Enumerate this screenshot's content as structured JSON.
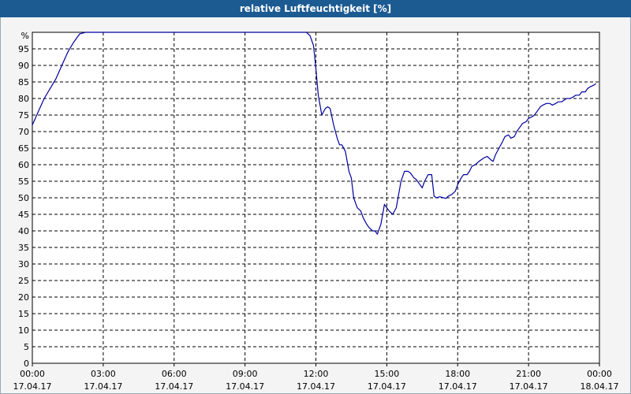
{
  "window": {
    "title": "relative Luftfeuchtigkeit [%]"
  },
  "chart_data": {
    "type": "line",
    "title": "relative Luftfeuchtigkeit [%]",
    "ylabel": "%",
    "ylim": [
      0,
      100
    ],
    "yticks": [
      0,
      5,
      10,
      15,
      20,
      25,
      30,
      35,
      40,
      45,
      50,
      55,
      60,
      65,
      70,
      75,
      80,
      85,
      90,
      95
    ],
    "xlim": [
      0,
      24
    ],
    "xticks": [
      {
        "time": "00:00",
        "date": "17.04.17"
      },
      {
        "time": "03:00",
        "date": "17.04.17"
      },
      {
        "time": "06:00",
        "date": "17.04.17"
      },
      {
        "time": "09:00",
        "date": "17.04.17"
      },
      {
        "time": "12:00",
        "date": "17.04.17"
      },
      {
        "time": "15:00",
        "date": "17.04.17"
      },
      {
        "time": "18:00",
        "date": "17.04.17"
      },
      {
        "time": "21:00",
        "date": "17.04.17"
      },
      {
        "time": "00:00",
        "date": "18.04.17"
      }
    ],
    "grid": true,
    "series": [
      {
        "color": "#0000a0",
        "x": [
          0.0,
          0.25,
          0.5,
          0.75,
          1.0,
          1.25,
          1.5,
          1.75,
          2.0,
          2.25,
          2.5,
          2.75,
          3.0,
          11.25,
          11.5,
          11.6,
          11.75,
          11.9,
          12.0,
          12.1,
          12.25,
          12.4,
          12.5,
          12.6,
          12.75,
          12.9,
          13.0,
          13.1,
          13.25,
          13.4,
          13.5,
          13.6,
          13.75,
          13.9,
          14.0,
          14.15,
          14.25,
          14.4,
          14.5,
          14.6,
          14.75,
          14.9,
          15.0,
          15.1,
          15.25,
          15.4,
          15.5,
          15.6,
          15.75,
          15.9,
          16.0,
          16.15,
          16.25,
          16.4,
          16.5,
          16.6,
          16.75,
          16.9,
          17.0,
          17.1,
          17.25,
          17.4,
          17.5,
          17.6,
          17.75,
          17.9,
          18.0,
          18.15,
          18.25,
          18.4,
          18.5,
          18.6,
          18.75,
          18.9,
          19.0,
          19.1,
          19.25,
          19.4,
          19.5,
          19.6,
          19.75,
          19.9,
          20.0,
          20.15,
          20.25,
          20.4,
          20.5,
          20.6,
          20.75,
          20.9,
          21.0,
          21.15,
          21.25,
          21.4,
          21.5,
          21.6,
          21.75,
          21.9,
          22.0,
          22.15,
          22.25,
          22.4,
          22.5,
          22.6,
          22.75,
          22.9,
          23.0,
          23.15,
          23.25,
          23.4,
          23.5,
          23.6,
          23.75,
          23.85
        ],
        "y": [
          72,
          76,
          80,
          83,
          86,
          90,
          94,
          97,
          99.5,
          100,
          100,
          100,
          100,
          100,
          100,
          100,
          99,
          96,
          89,
          81,
          75,
          77,
          77.5,
          77,
          72,
          68,
          66,
          66,
          64,
          58,
          56,
          50,
          47,
          46,
          44,
          42,
          41,
          40,
          40,
          39,
          42,
          48,
          47,
          46,
          45,
          47,
          51,
          55,
          58,
          58,
          57.5,
          56,
          55.5,
          54,
          53,
          55,
          57,
          57,
          50.5,
          50,
          50.3,
          50,
          49.8,
          50.5,
          51,
          52,
          54,
          56,
          57,
          57,
          58,
          59.5,
          60,
          61,
          61.5,
          62,
          62.5,
          61.5,
          61,
          63,
          65,
          67,
          68.5,
          69,
          68,
          68.5,
          70,
          71,
          72.5,
          73,
          74,
          74.5,
          75,
          76.5,
          77.5,
          78,
          78.5,
          78.5,
          78,
          78.5,
          79,
          79,
          79.5,
          80,
          80,
          80.5,
          81,
          81,
          82,
          82,
          83,
          83.5,
          84,
          84.5
        ]
      }
    ]
  }
}
